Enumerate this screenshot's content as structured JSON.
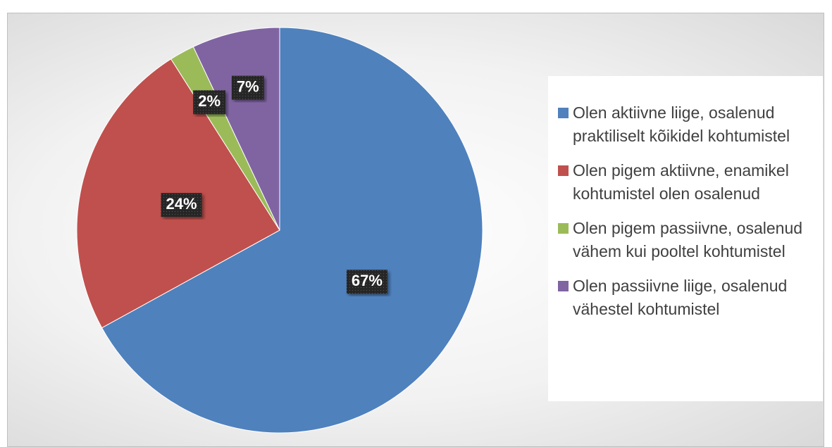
{
  "chart_data": {
    "type": "pie",
    "categories": [
      "Olen aktiivne liige, osalenud praktiliselt kõikidel kohtumistel",
      "Olen pigem aktiivne, enamikel kohtumistel olen osalenud",
      "Olen pigem passiivne, osalenud vähem kui pooltel kohtumistel",
      "Olen passiivne liige, osalenud vähestel kohtumistel"
    ],
    "values": [
      67,
      24,
      2,
      7
    ],
    "value_labels": [
      "67%",
      "24%",
      "2%",
      "7%"
    ],
    "colors": [
      "#4f81bd",
      "#c0504d",
      "#9bbb59",
      "#8064a2"
    ],
    "legend": "right"
  }
}
